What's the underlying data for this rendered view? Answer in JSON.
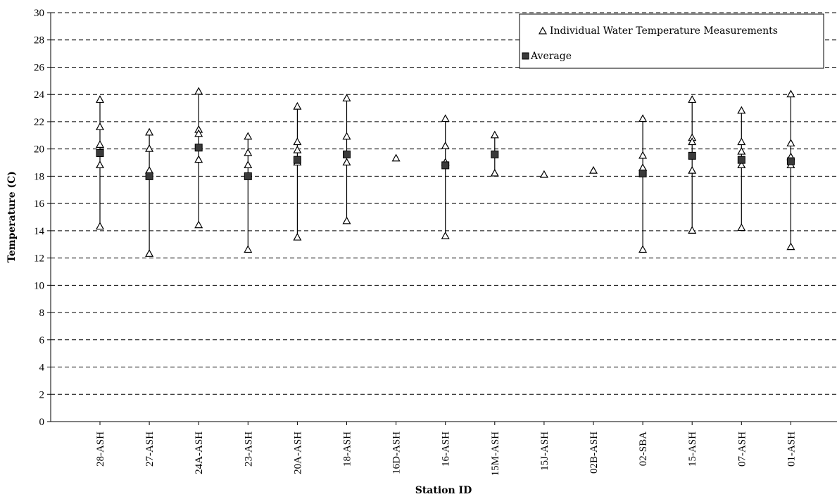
{
  "chart_data": {
    "type": "scatter",
    "xlabel": "Station ID",
    "ylabel": "Temperature (C)",
    "ylim": [
      0,
      30
    ],
    "yticks": [
      0,
      2,
      4,
      6,
      8,
      10,
      12,
      14,
      16,
      18,
      20,
      22,
      24,
      26,
      28,
      30
    ],
    "grid": "horizontal dashed",
    "legend_position": "top-right",
    "categories": [
      "28-ASH",
      "27-ASH",
      "24A-ASH",
      "23-ASH",
      "20A-ASH",
      "18-ASH",
      "16D-ASH",
      "16-ASH",
      "15M-ASH",
      "15J-ASH",
      "02B-ASH",
      "02-SBA",
      "15-ASH",
      "07-ASH",
      "01-ASH"
    ],
    "series": [
      {
        "name": "Individual Water Temperature Measurements",
        "marker": "open-triangle",
        "values": [
          [
            23.6,
            21.6,
            20.3,
            18.8,
            14.3
          ],
          [
            21.2,
            20.0,
            18.4,
            12.3
          ],
          [
            24.2,
            21.4,
            21.1,
            19.2,
            14.4
          ],
          [
            20.9,
            19.7,
            18.8,
            12.6
          ],
          [
            23.1,
            20.5,
            19.9,
            19.0,
            13.5
          ],
          [
            23.7,
            20.9,
            19.0,
            14.7
          ],
          [
            19.3
          ],
          [
            22.2,
            20.2,
            19.0,
            13.6
          ],
          [
            21.0,
            18.2
          ],
          [
            18.1
          ],
          [
            18.4
          ],
          [
            22.2,
            19.5,
            18.6,
            12.6
          ],
          [
            23.6,
            20.8,
            20.5,
            18.4,
            14.0
          ],
          [
            22.8,
            20.5,
            19.8,
            18.8,
            14.2
          ],
          [
            24.0,
            20.4,
            19.4,
            18.8,
            12.8
          ]
        ]
      },
      {
        "name": "Average",
        "marker": "filled-square",
        "color": "#3a3a3a",
        "values": [
          19.7,
          18.0,
          20.1,
          18.0,
          19.2,
          19.6,
          null,
          18.8,
          19.6,
          null,
          null,
          18.2,
          19.5,
          19.2,
          19.1
        ]
      }
    ]
  }
}
